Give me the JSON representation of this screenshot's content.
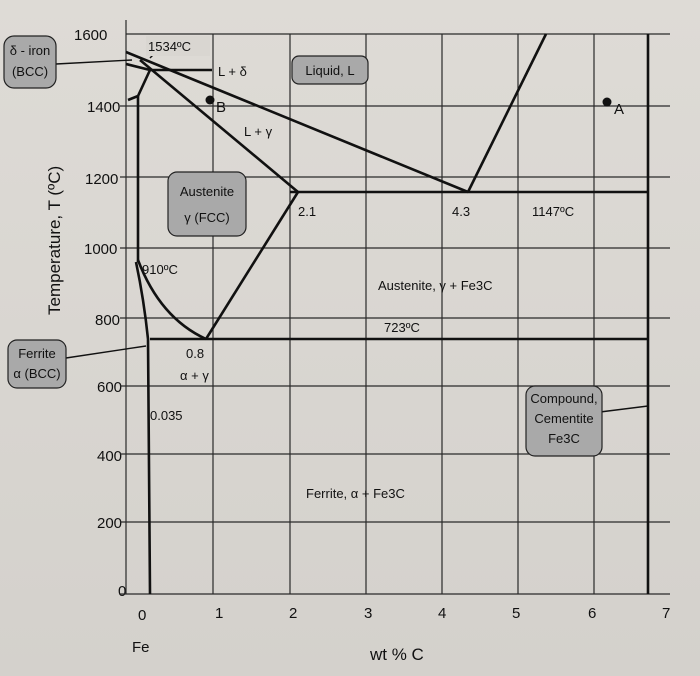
{
  "diagram": {
    "y_axis_title": "Temperature, T (ºC)",
    "x_axis_title": "wt % C",
    "x_origin_label": "Fe",
    "y_ticks": [
      "1600",
      "1400",
      "1200",
      "1000",
      "800",
      "600",
      "400",
      "200",
      "0"
    ],
    "x_ticks": [
      "0",
      "1",
      "2",
      "3",
      "4",
      "5",
      "6",
      "7"
    ],
    "region_labels": {
      "delta_iron": [
        "δ - iron",
        "(BCC)"
      ],
      "liquid": "Liquid, L",
      "austenite": [
        "Austenite",
        "γ (FCC)"
      ],
      "ferrite": [
        "Ferrite",
        "α (BCC)"
      ],
      "cementite": [
        "Compound,",
        "Cementite",
        "Fe3C"
      ],
      "l_plus_delta": "L + δ",
      "l_plus_gamma": "L + γ",
      "alpha_plus_gamma": "α + γ",
      "austenite_plus_fe3c": "Austenite, γ + Fe3C",
      "ferrite_plus_fe3c": "Ferrite, α + Fe3C"
    },
    "annotations": {
      "t_1534": "1534ºC",
      "t_1147": "1147ºC",
      "t_910": "910ºC",
      "t_723": "723ºC",
      "c_2_1": "2.1",
      "c_4_3": "4.3",
      "c_0_8": "0.8",
      "c_0_035": "0.035"
    },
    "points": {
      "A": "A",
      "B": "B"
    },
    "colors": {
      "line": "#1a1a1a",
      "label_box": "#a9a9a9",
      "background": "#d9d6d1"
    }
  }
}
